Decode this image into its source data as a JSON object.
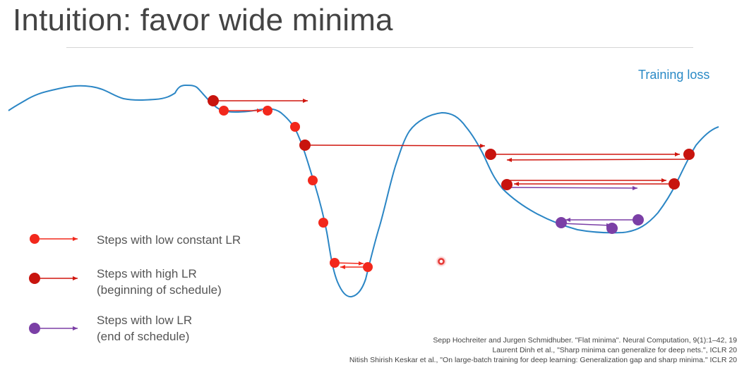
{
  "slide": {
    "title": "Intuition: favor wide minima",
    "curve_label": "Training loss"
  },
  "legend": {
    "low_constant": "Steps with low constant LR",
    "high_line1": "Steps with high LR",
    "high_line2": "(beginning of schedule)",
    "low_line1": "Steps with low LR",
    "low_line2": "(end of schedule)"
  },
  "colors": {
    "curve": "#2b86c5",
    "low_constant": "#f2281c",
    "high": "#c8140e",
    "low_end": "#7b3fa6"
  },
  "references": [
    "Sepp Hochreiter and Jurgen Schmidhuber. \"Flat minima\". Neural Computation, 9(1):1–42, 19",
    "Laurent Dinh et al., \"Sharp minima can generalize for deep nets.\", ICLR 20",
    "Nitish Shirish Keskar et al., \"On large-batch training for deep learning: Generalization gap and sharp minima.\" ICLR 20"
  ]
}
